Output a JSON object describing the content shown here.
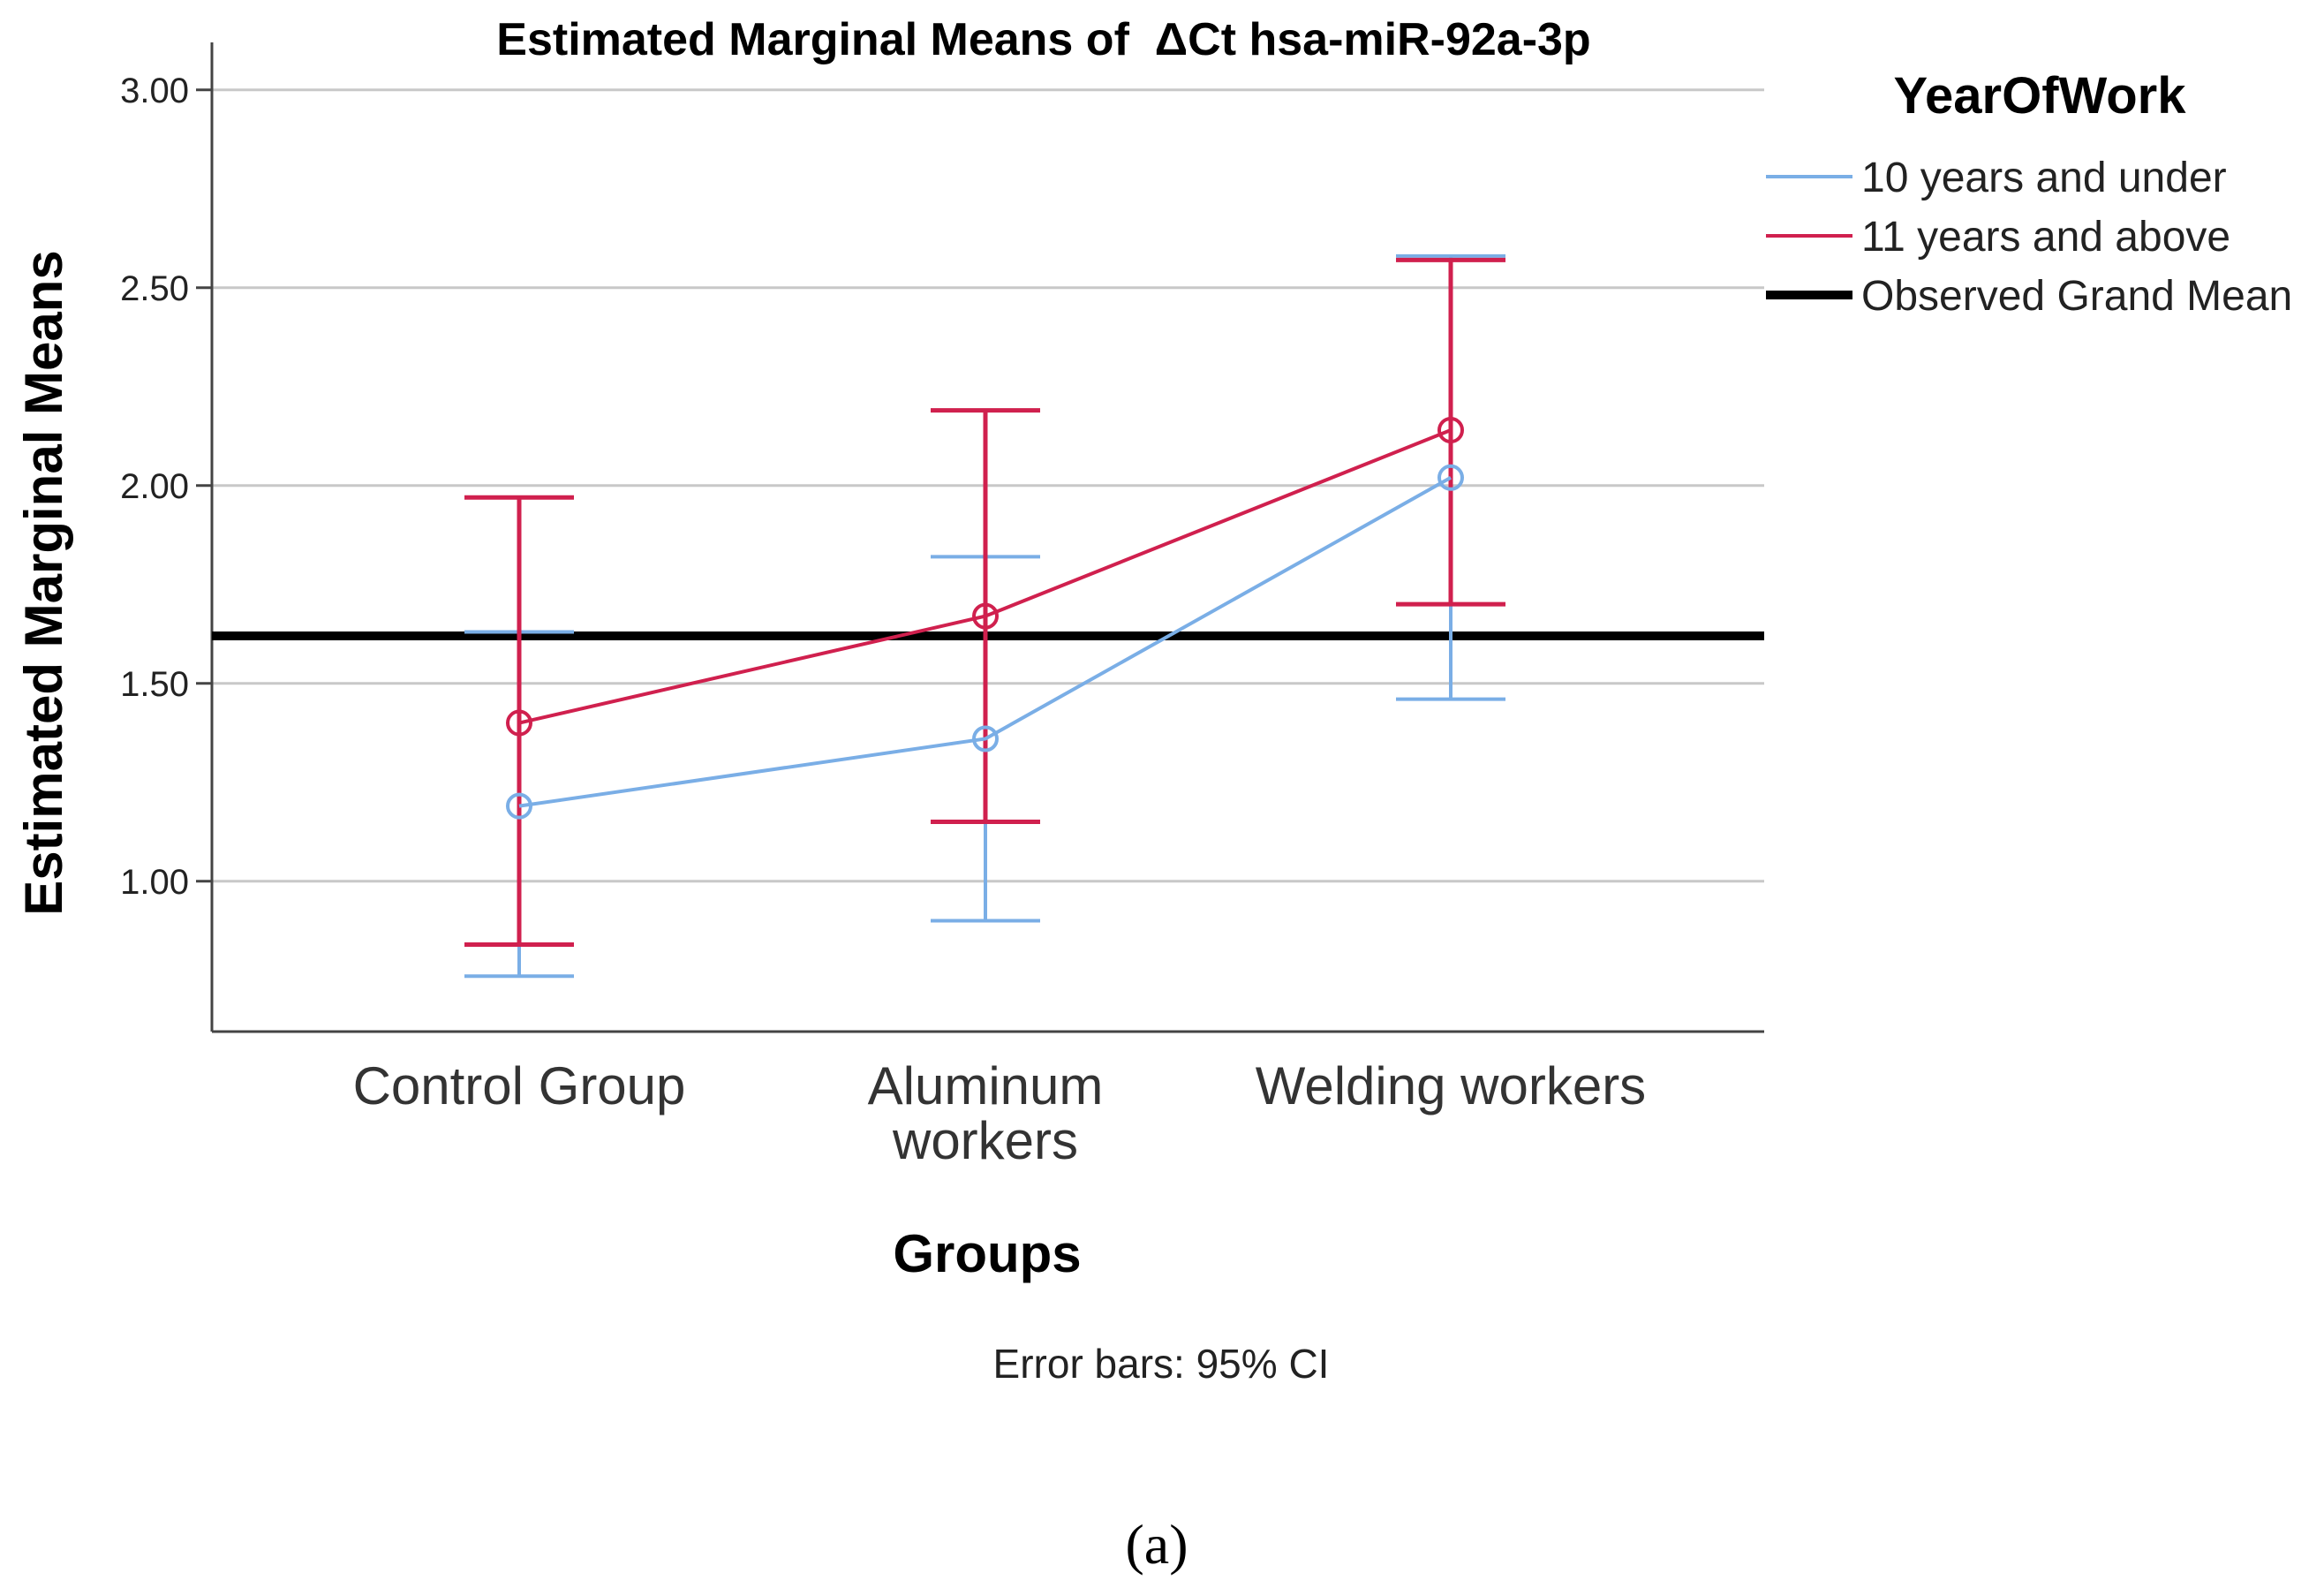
{
  "chart_data": {
    "type": "line",
    "title": "Estimated Marginal Means of  ΔCt hsa-miR-92a-3p",
    "xlabel": "Groups",
    "ylabel": "Estimated Marginal Means",
    "categories": [
      [
        "Control Group"
      ],
      [
        "Aluminum",
        "workers"
      ],
      [
        "Welding workers"
      ]
    ],
    "yticks": [
      "1.00",
      "1.50",
      "2.00",
      "2.50",
      "3.00"
    ],
    "ytick_values": [
      1.0,
      1.5,
      2.0,
      2.5,
      3.0
    ],
    "ylim": [
      0.62,
      3.12
    ],
    "legend_title": "YearOfWork",
    "series": [
      {
        "name": "10 years and under",
        "color": "#7aaee6",
        "values": [
          1.19,
          1.36,
          2.02
        ],
        "ci_low": [
          0.76,
          0.9,
          1.46
        ],
        "ci_high": [
          1.63,
          1.82,
          2.58
        ]
      },
      {
        "name": "11 years and above",
        "color": "#d0204e",
        "values": [
          1.4,
          1.67,
          2.14
        ],
        "ci_low": [
          0.84,
          1.15,
          1.7
        ],
        "ci_high": [
          1.97,
          2.19,
          2.57
        ]
      }
    ],
    "grand_mean": {
      "name": "Observed Grand Mean",
      "value": 1.62,
      "color": "#000000"
    },
    "note": "Error bars: 95% CI",
    "panel_label": "(a)"
  }
}
